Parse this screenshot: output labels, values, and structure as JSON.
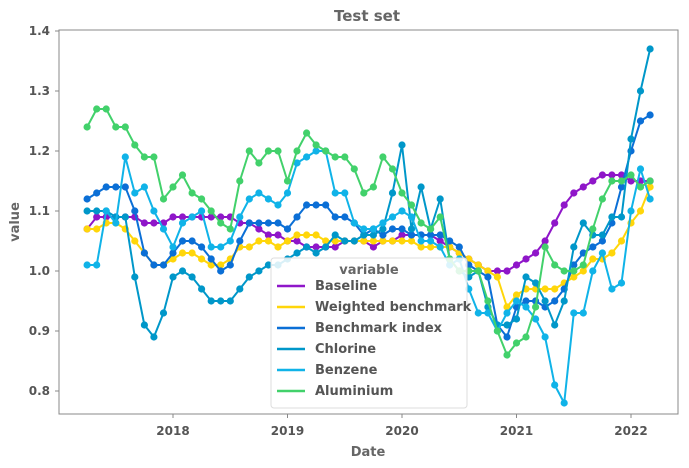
{
  "chart_data": {
    "type": "line",
    "title": "Test set",
    "xlabel": "Date",
    "ylabel": "value",
    "x_ticks": [
      "2018",
      "2019",
      "2020",
      "2021",
      "2022"
    ],
    "y_ticks": [
      "0.8",
      "0.9",
      "1.0",
      "1.1",
      "1.2",
      "1.3",
      "1.4"
    ],
    "ylim": [
      0.76,
      1.43
    ],
    "grid": false,
    "legend": {
      "title": "variable",
      "placement": "lower-center"
    },
    "x": [
      "2017-04",
      "2017-05",
      "2017-06",
      "2017-07",
      "2017-08",
      "2017-09",
      "2017-10",
      "2017-11",
      "2017-12",
      "2018-01",
      "2018-02",
      "2018-03",
      "2018-04",
      "2018-05",
      "2018-06",
      "2018-07",
      "2018-08",
      "2018-09",
      "2018-10",
      "2018-11",
      "2018-12",
      "2019-01",
      "2019-02",
      "2019-03",
      "2019-04",
      "2019-05",
      "2019-06",
      "2019-07",
      "2019-08",
      "2019-09",
      "2019-10",
      "2019-11",
      "2019-12",
      "2020-01",
      "2020-02",
      "2020-03",
      "2020-04",
      "2020-05",
      "2020-06",
      "2020-07",
      "2020-08",
      "2020-09",
      "2020-10",
      "2020-11",
      "2020-12",
      "2021-01",
      "2021-02",
      "2021-03",
      "2021-04",
      "2021-05",
      "2021-06",
      "2021-07",
      "2021-08",
      "2021-09",
      "2021-10",
      "2021-11",
      "2021-12",
      "2022-01",
      "2022-02",
      "2022-03"
    ],
    "series": [
      {
        "name": "Baseline",
        "color": "#8f16c9",
        "values": [
          1.07,
          1.09,
          1.09,
          1.09,
          1.09,
          1.09,
          1.08,
          1.08,
          1.08,
          1.09,
          1.09,
          1.09,
          1.09,
          1.09,
          1.09,
          1.09,
          1.08,
          1.08,
          1.07,
          1.06,
          1.06,
          1.05,
          1.05,
          1.04,
          1.04,
          1.04,
          1.04,
          1.05,
          1.05,
          1.05,
          1.04,
          1.05,
          1.05,
          1.06,
          1.06,
          1.06,
          1.06,
          1.05,
          1.04,
          1.03,
          1.02,
          1.01,
          1.0,
          1.0,
          1.0,
          1.01,
          1.02,
          1.03,
          1.05,
          1.08,
          1.11,
          1.13,
          1.14,
          1.15,
          1.16,
          1.16,
          1.16,
          1.15,
          1.15,
          1.15
        ]
      },
      {
        "name": "Weighted benchmark",
        "color": "#ffd60a",
        "values": [
          1.07,
          1.07,
          1.08,
          1.08,
          1.07,
          1.05,
          1.03,
          1.01,
          1.01,
          1.02,
          1.03,
          1.03,
          1.02,
          1.01,
          1.01,
          1.02,
          1.04,
          1.04,
          1.05,
          1.05,
          1.04,
          1.05,
          1.06,
          1.06,
          1.06,
          1.05,
          1.05,
          1.05,
          1.05,
          1.05,
          1.05,
          1.05,
          1.05,
          1.05,
          1.05,
          1.04,
          1.04,
          1.04,
          1.04,
          1.03,
          1.02,
          1.01,
          1.0,
          0.99,
          0.94,
          0.96,
          0.97,
          0.97,
          0.97,
          0.97,
          0.98,
          0.99,
          1.0,
          1.02,
          1.02,
          1.03,
          1.05,
          1.08,
          1.1,
          1.14
        ]
      },
      {
        "name": "Benchmark index",
        "color": "#0b6fd6",
        "values": [
          1.12,
          1.13,
          1.14,
          1.14,
          1.14,
          1.1,
          1.03,
          1.01,
          1.01,
          1.03,
          1.05,
          1.05,
          1.04,
          1.02,
          1.0,
          1.01,
          1.05,
          1.08,
          1.08,
          1.08,
          1.08,
          1.07,
          1.09,
          1.11,
          1.11,
          1.11,
          1.09,
          1.09,
          1.08,
          1.06,
          1.07,
          1.06,
          1.07,
          1.07,
          1.06,
          1.06,
          1.06,
          1.06,
          1.05,
          1.04,
          1.01,
          1.0,
          0.99,
          0.91,
          0.89,
          0.94,
          0.95,
          0.95,
          0.94,
          0.95,
          0.97,
          1.01,
          1.03,
          1.04,
          1.05,
          1.08,
          1.14,
          1.2,
          1.25,
          1.26
        ]
      },
      {
        "name": "Chlorine",
        "color": "#0097c9",
        "values": [
          1.1,
          1.1,
          1.1,
          1.09,
          1.09,
          0.99,
          0.91,
          0.89,
          0.93,
          0.99,
          1.0,
          0.99,
          0.97,
          0.95,
          0.95,
          0.95,
          0.97,
          0.99,
          1.0,
          1.01,
          1.01,
          1.02,
          1.03,
          1.04,
          1.03,
          1.04,
          1.06,
          1.05,
          1.05,
          1.06,
          1.06,
          1.07,
          1.13,
          1.21,
          1.07,
          1.14,
          1.07,
          1.12,
          1.02,
          1.0,
          0.99,
          1.0,
          0.94,
          0.91,
          0.91,
          0.92,
          0.99,
          0.98,
          0.95,
          0.91,
          0.95,
          1.04,
          1.08,
          1.06,
          1.06,
          1.09,
          1.09,
          1.22,
          1.3,
          1.37
        ]
      },
      {
        "name": "Benzene",
        "color": "#10b3e8",
        "values": [
          1.01,
          1.01,
          1.1,
          1.08,
          1.19,
          1.13,
          1.14,
          1.1,
          1.07,
          1.04,
          1.08,
          1.09,
          1.1,
          1.04,
          1.04,
          1.05,
          1.09,
          1.12,
          1.13,
          1.12,
          1.11,
          1.13,
          1.18,
          1.19,
          1.2,
          1.2,
          1.13,
          1.13,
          1.08,
          1.07,
          1.07,
          1.08,
          1.09,
          1.1,
          1.09,
          1.05,
          1.05,
          1.04,
          1.01,
          1.02,
          0.97,
          0.93,
          0.93,
          0.9,
          0.93,
          0.95,
          0.94,
          0.92,
          0.89,
          0.81,
          0.78,
          0.93,
          0.93,
          1.0,
          1.03,
          0.97,
          0.98,
          1.1,
          1.17,
          1.12
        ]
      },
      {
        "name": "Aluminium",
        "color": "#42d16b",
        "values": [
          1.24,
          1.27,
          1.27,
          1.24,
          1.24,
          1.21,
          1.19,
          1.19,
          1.12,
          1.14,
          1.16,
          1.13,
          1.12,
          1.1,
          1.08,
          1.07,
          1.15,
          1.2,
          1.18,
          1.2,
          1.2,
          1.15,
          1.2,
          1.23,
          1.21,
          1.2,
          1.19,
          1.19,
          1.17,
          1.13,
          1.14,
          1.19,
          1.17,
          1.13,
          1.11,
          1.08,
          1.07,
          1.09,
          1.02,
          1.0,
          1.0,
          1.0,
          0.95,
          0.9,
          0.86,
          0.88,
          0.89,
          0.94,
          1.04,
          1.01,
          1.0,
          1.0,
          1.01,
          1.07,
          1.12,
          1.15,
          1.15,
          1.16,
          1.14,
          1.15
        ]
      }
    ]
  }
}
